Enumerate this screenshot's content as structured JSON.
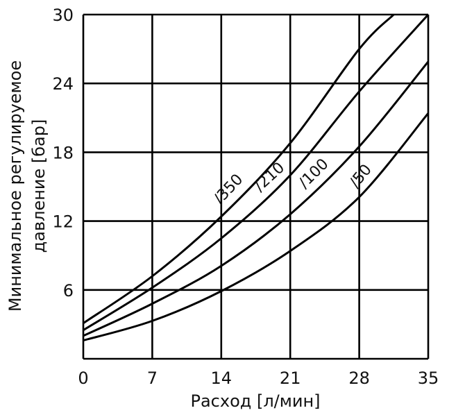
{
  "chart_data": {
    "type": "line",
    "title": "",
    "xlabel": "Расход [л/мин]",
    "ylabel_lines": [
      "Минимальное регулируемое",
      "давление [бар]"
    ],
    "xlim": [
      0,
      35
    ],
    "ylim": [
      0,
      30
    ],
    "xticks": [
      "0",
      "7",
      "14",
      "21",
      "28",
      "35"
    ],
    "yticks": [
      "6",
      "12",
      "18",
      "24",
      "30"
    ],
    "grid": true,
    "series": [
      {
        "name": "/350",
        "x": [
          0,
          7,
          14,
          21,
          28,
          31.5
        ],
        "y": [
          3.1,
          7.2,
          12.4,
          18.8,
          27,
          30
        ]
      },
      {
        "name": "/210",
        "x": [
          0,
          7,
          14,
          21,
          28,
          35
        ],
        "y": [
          2.5,
          6.2,
          10.5,
          16,
          23.3,
          30
        ]
      },
      {
        "name": "/100",
        "x": [
          0,
          7,
          14,
          21,
          28,
          35
        ],
        "y": [
          2.0,
          4.8,
          8.1,
          12.6,
          18.5,
          25.9
        ]
      },
      {
        "name": "/50",
        "x": [
          0,
          7,
          14,
          21,
          28,
          35
        ],
        "y": [
          1.6,
          3.3,
          5.9,
          9.4,
          14.1,
          21.4
        ]
      }
    ]
  }
}
